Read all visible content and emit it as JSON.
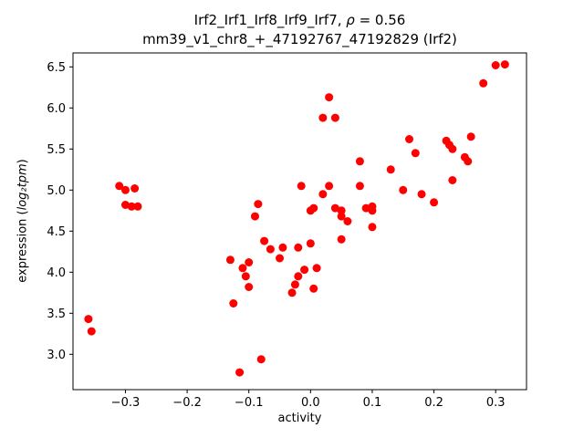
{
  "chart_data": {
    "type": "scatter",
    "title": "Irf2_Irf1_Irf8_Irf9_Irf7, ρ = 0.56",
    "subtitle": "mm39_v1_chr8_+_47192767_47192829 (Irf2)",
    "title_parts": {
      "line1_prefix": "Irf2_Irf1_Irf8_Irf9_Irf7, ",
      "rho": "ρ",
      "line1_suffix": " = 0.56",
      "line2": "mm39_v1_chr8_+_47192767_47192829 (Irf2)"
    },
    "rho": 0.56,
    "xlabel": "activity",
    "ylabel": "expression (log₂tpm)",
    "ylabel_parts": {
      "prefix": "expression (",
      "math": "log₂tpm",
      "suffix": ")"
    },
    "marker_color": "#ff0000",
    "grid": false,
    "xlim": [
      -0.385,
      0.35
    ],
    "ylim": [
      2.57,
      6.67
    ],
    "xticks": {
      "values": [
        -0.3,
        -0.2,
        -0.1,
        0.0,
        0.1,
        0.2,
        0.3
      ],
      "labels": [
        "−0.3",
        "−0.2",
        "−0.1",
        "0.0",
        "0.1",
        "0.2",
        "0.3"
      ]
    },
    "yticks": {
      "values": [
        3.0,
        3.5,
        4.0,
        4.5,
        5.0,
        5.5,
        6.0,
        6.5
      ],
      "labels": [
        "3.0",
        "3.5",
        "4.0",
        "4.5",
        "5.0",
        "5.5",
        "6.0",
        "6.5"
      ]
    },
    "points": [
      [
        -0.36,
        3.43
      ],
      [
        -0.355,
        3.28
      ],
      [
        -0.31,
        5.05
      ],
      [
        -0.3,
        5.0
      ],
      [
        -0.285,
        5.02
      ],
      [
        -0.3,
        4.82
      ],
      [
        -0.29,
        4.8
      ],
      [
        -0.28,
        4.8
      ],
      [
        -0.13,
        4.15
      ],
      [
        -0.125,
        3.62
      ],
      [
        -0.115,
        2.78
      ],
      [
        -0.11,
        4.05
      ],
      [
        -0.105,
        3.95
      ],
      [
        -0.1,
        4.12
      ],
      [
        -0.1,
        3.82
      ],
      [
        -0.09,
        4.68
      ],
      [
        -0.085,
        4.83
      ],
      [
        -0.08,
        2.94
      ],
      [
        -0.075,
        4.38
      ],
      [
        -0.065,
        4.28
      ],
      [
        -0.05,
        4.17
      ],
      [
        -0.045,
        4.3
      ],
      [
        -0.03,
        3.75
      ],
      [
        -0.025,
        3.85
      ],
      [
        -0.02,
        4.3
      ],
      [
        -0.02,
        3.95
      ],
      [
        -0.015,
        5.05
      ],
      [
        -0.01,
        4.03
      ],
      [
        0.0,
        4.75
      ],
      [
        0.005,
        4.78
      ],
      [
        0.0,
        4.35
      ],
      [
        0.005,
        3.8
      ],
      [
        0.01,
        4.05
      ],
      [
        0.02,
        5.88
      ],
      [
        0.04,
        5.88
      ],
      [
        0.03,
        6.13
      ],
      [
        0.02,
        4.95
      ],
      [
        0.03,
        5.05
      ],
      [
        0.04,
        4.78
      ],
      [
        0.05,
        4.75
      ],
      [
        0.05,
        4.68
      ],
      [
        0.05,
        4.4
      ],
      [
        0.06,
        4.62
      ],
      [
        0.08,
        5.35
      ],
      [
        0.08,
        5.05
      ],
      [
        0.09,
        4.78
      ],
      [
        0.1,
        4.8
      ],
      [
        0.1,
        4.75
      ],
      [
        0.1,
        4.55
      ],
      [
        0.13,
        5.25
      ],
      [
        0.15,
        5.0
      ],
      [
        0.16,
        5.62
      ],
      [
        0.17,
        5.45
      ],
      [
        0.18,
        4.95
      ],
      [
        0.2,
        4.85
      ],
      [
        0.22,
        5.6
      ],
      [
        0.225,
        5.55
      ],
      [
        0.23,
        5.5
      ],
      [
        0.23,
        5.12
      ],
      [
        0.25,
        5.4
      ],
      [
        0.255,
        5.35
      ],
      [
        0.26,
        5.65
      ],
      [
        0.28,
        6.3
      ],
      [
        0.3,
        6.52
      ],
      [
        0.315,
        6.53
      ]
    ]
  }
}
